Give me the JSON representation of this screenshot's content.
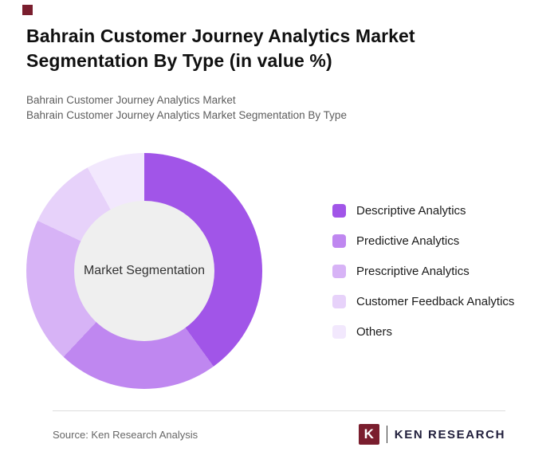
{
  "header": {
    "title": "Bahrain Customer Journey Analytics Market Segmentation By Type (in value %)",
    "subtitle1": "Bahrain Customer Journey Analytics Market",
    "subtitle2": "Bahrain Customer Journey Analytics Market Segmentation By Type"
  },
  "chart_data": {
    "type": "pie",
    "donut": true,
    "title": "Bahrain Customer Journey Analytics Market Segmentation By Type (in value %)",
    "center_label": "Market Segmentation",
    "legend_position": "right",
    "start_angle_deg": 0,
    "series": [
      {
        "name": "Descriptive Analytics",
        "value": 40,
        "color": "#a155e8"
      },
      {
        "name": "Predictive Analytics",
        "value": 22,
        "color": "#bf87f0"
      },
      {
        "name": "Prescriptive Analytics",
        "value": 20,
        "color": "#d7b3f6"
      },
      {
        "name": "Customer Feedback Analytics",
        "value": 10,
        "color": "#e7d2fa"
      },
      {
        "name": "Others",
        "value": 8,
        "color": "#f2e8fd"
      }
    ]
  },
  "footer": {
    "source": "Source: Ken Research Analysis",
    "logo_k": "K",
    "logo_text": "KEN RESEARCH"
  },
  "colors": {
    "brand_maroon": "#7a1e2e",
    "center_circle": "#efefef"
  }
}
